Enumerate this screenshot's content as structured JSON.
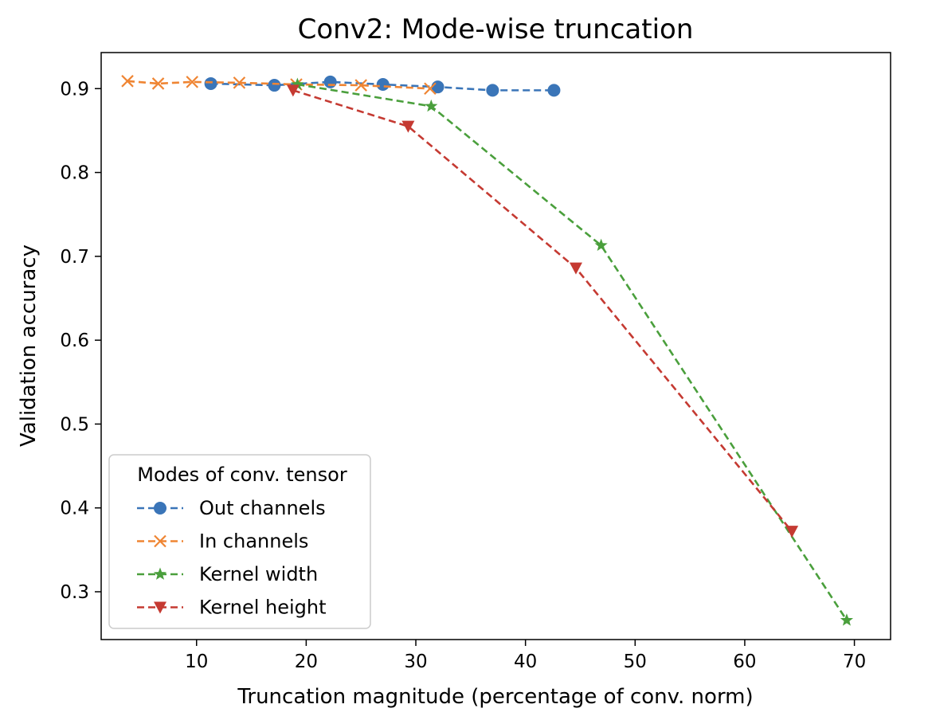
{
  "chart_data": {
    "type": "line",
    "title": "Conv2: Mode-wise truncation",
    "xlabel": "Truncation magnitude (percentage of conv. norm)",
    "ylabel": "Validation accuracy",
    "xlim": [
      1.3,
      73.3
    ],
    "ylim": [
      0.243,
      0.943
    ],
    "xticks": [
      10,
      20,
      30,
      40,
      50,
      60,
      70
    ],
    "yticks": [
      0.3,
      0.4,
      0.5,
      0.6,
      0.7,
      0.8,
      0.9
    ],
    "ytick_labels": [
      "0.3",
      "0.4",
      "0.5",
      "0.6",
      "0.7",
      "0.8",
      "0.9"
    ],
    "grid": false,
    "legend": {
      "title": "Modes of conv. tensor",
      "position": "lower-left"
    },
    "series": [
      {
        "name": "Out channels",
        "color": "#3a75b8",
        "marker": "circle",
        "x": [
          11.3,
          17.1,
          22.2,
          27.0,
          32.0,
          37.0,
          42.6
        ],
        "y": [
          0.906,
          0.904,
          0.908,
          0.905,
          0.902,
          0.898,
          0.898
        ]
      },
      {
        "name": "In channels",
        "color": "#ef8533",
        "marker": "x",
        "x": [
          3.7,
          6.5,
          9.6,
          13.9,
          19.1,
          25.0,
          31.3
        ],
        "y": [
          0.909,
          0.906,
          0.908,
          0.907,
          0.905,
          0.904,
          0.9
        ]
      },
      {
        "name": "Kernel width",
        "color": "#4a9f3c",
        "marker": "star",
        "x": [
          19.2,
          31.4,
          46.9,
          69.3
        ],
        "y": [
          0.905,
          0.879,
          0.713,
          0.266
        ]
      },
      {
        "name": "Kernel height",
        "color": "#c53a32",
        "marker": "triangle-down",
        "x": [
          18.8,
          29.3,
          44.6,
          64.3
        ],
        "y": [
          0.898,
          0.855,
          0.686,
          0.372
        ]
      }
    ]
  }
}
